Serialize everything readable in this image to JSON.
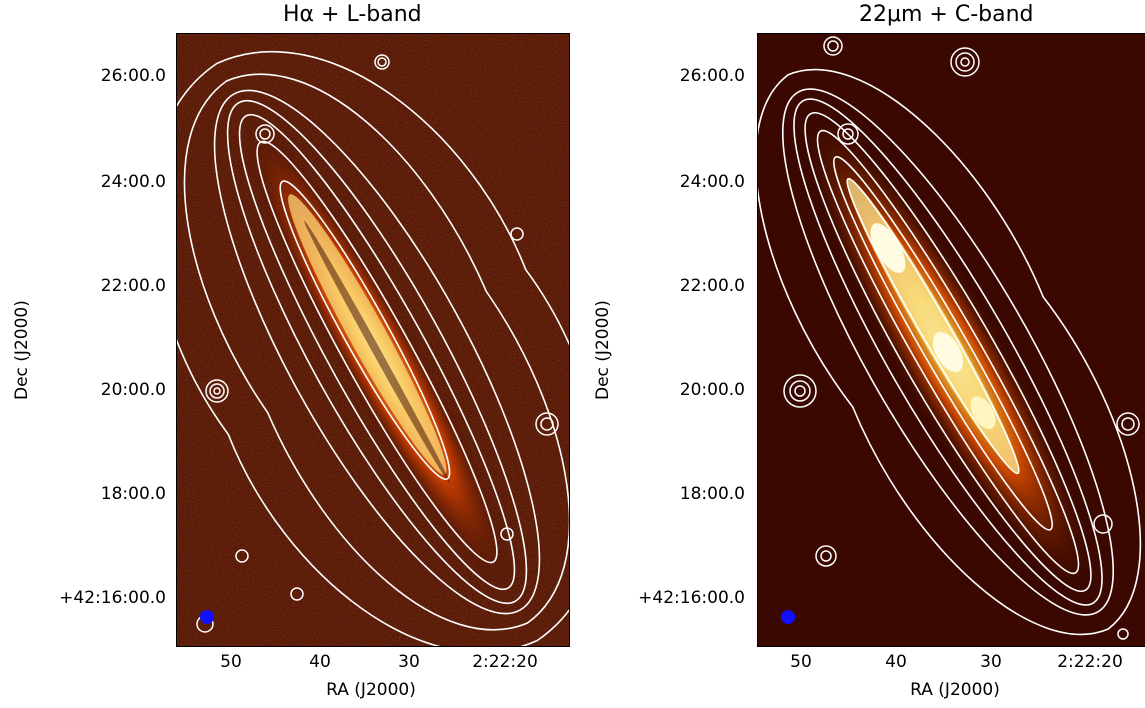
{
  "panels": [
    {
      "title_main": "Hα + L-band",
      "xlabel": "RA (J2000)",
      "ylabel": "Dec (J2000)",
      "yticks": [
        "26:00.0",
        "24:00.0",
        "22:00.0",
        "20:00.0",
        "18:00.0",
        "+42:16:00.0"
      ],
      "xticks": [
        "50",
        "40",
        "30",
        "2:22:20"
      ]
    },
    {
      "title_main": "22μm + C-band",
      "xlabel": "RA (J2000)",
      "ylabel": "Dec (J2000)",
      "yticks": [
        "26:00.0",
        "24:00.0",
        "22:00.0",
        "20:00.0",
        "18:00.0",
        "+42:16:00.0"
      ],
      "xticks": [
        "50",
        "40",
        "30",
        "2:22:20"
      ]
    }
  ],
  "colors": {
    "background_map": "#3a0800",
    "hot": "#ffd060",
    "contour": "#ffffff",
    "beam": "#1010ff"
  },
  "icons": [
    "beam-marker-icon"
  ]
}
